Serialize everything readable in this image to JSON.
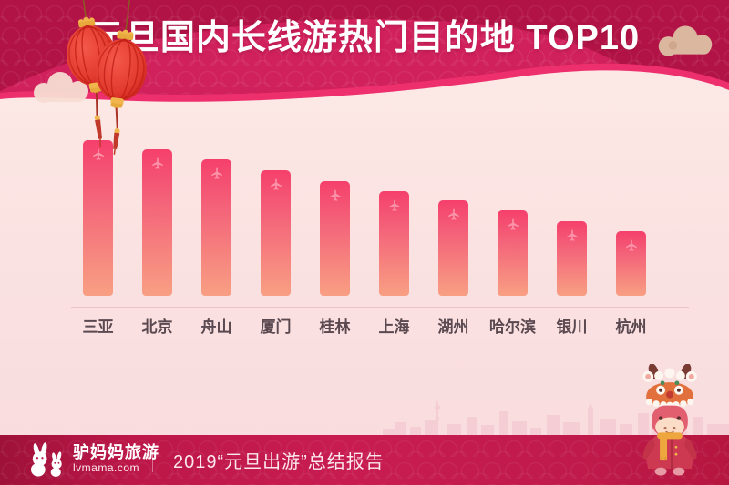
{
  "header": {
    "title": "元旦国内长线游热门目的地 TOP10"
  },
  "chart_data": {
    "type": "bar",
    "title": "元旦国内长线游热门目的地 TOP10",
    "categories": [
      "三亚",
      "北京",
      "舟山",
      "厦门",
      "桂林",
      "上海",
      "湖州",
      "哈尔滨",
      "银川",
      "杭州"
    ],
    "values": [
      171,
      161,
      150,
      138,
      126,
      115,
      105,
      94,
      82,
      71
    ],
    "value_scale": "relative-bar-height-px",
    "note": "ranking infographic — no numeric axis or data labels are shown; values estimated from bar heights",
    "bar_icon": "airplane-icon",
    "legend": "none",
    "grid": "off",
    "baseline": true
  },
  "footer": {
    "brand_name": "驴妈妈旅游",
    "brand_domain": "lvmama.com",
    "report_label": "2019“元旦出游”总结报告"
  },
  "decorations": {
    "lanterns": "red-chinese-lanterns",
    "cloud_left": "pale-cloud",
    "cloud_right": "tan-cloud",
    "skyline": "city-skyline-silhouette",
    "mascot": "donkey-mascot-with-lion-dance-hat"
  },
  "colors": {
    "header_base": "#b21346",
    "header_swoosh": "#d62561",
    "header_edge": "#ee2f6d",
    "background_top": "#fcece7",
    "background_bottom": "#f8dbde",
    "bar_top": "#f5406c",
    "bar_bottom": "#f89f83",
    "airplane": "#fb93a9",
    "label_text": "#5a4950",
    "baseline": "#eec3c6",
    "footer_band": "#c01a4c",
    "footer_text": "#fbe8ee",
    "lantern_red": "#e23a2e",
    "gold": "#f0b54b"
  }
}
